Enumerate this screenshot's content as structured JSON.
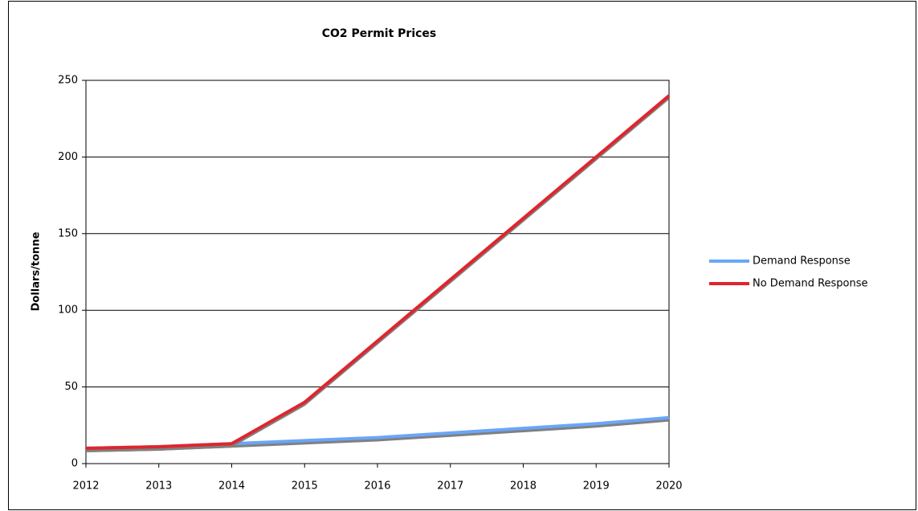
{
  "chart_data": {
    "type": "line",
    "title": "CO2 Permit Prices",
    "y_label": "Dollars/tonne",
    "categories": [
      "2012",
      "2013",
      "2014",
      "2015",
      "2016",
      "2017",
      "2018",
      "2019",
      "2020"
    ],
    "series": [
      {
        "name": "Demand Response",
        "color": "#6aa6f8",
        "values": [
          10,
          11,
          13,
          15,
          17,
          20,
          23,
          26,
          30
        ]
      },
      {
        "name": "No Demand Response",
        "color": "#e0252d",
        "values": [
          10,
          11,
          13,
          40,
          80,
          120,
          160,
          200,
          240
        ]
      }
    ],
    "ylim": [
      0,
      250
    ],
    "yticks": [
      0,
      50,
      100,
      150,
      200,
      250
    ],
    "grid": true,
    "legend": "right"
  }
}
